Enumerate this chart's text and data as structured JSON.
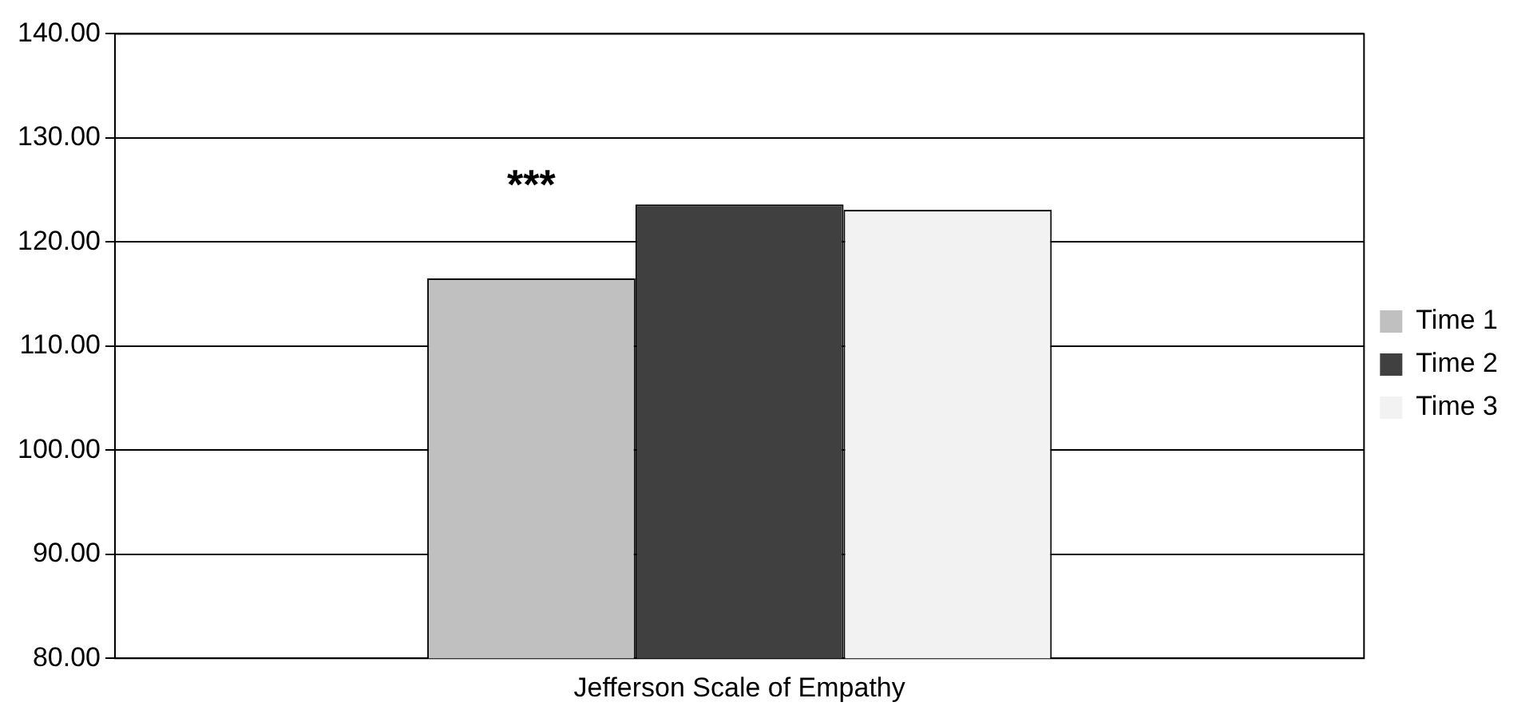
{
  "chart_data": {
    "type": "bar",
    "categories": [
      "Jefferson Scale of Empathy"
    ],
    "series": [
      {
        "name": "Time 1",
        "color": "#c0c0c0",
        "values": [
          116.5
        ]
      },
      {
        "name": "Time 2",
        "color": "#404040",
        "values": [
          123.6
        ]
      },
      {
        "name": "Time 3",
        "color": "#f2f2f2",
        "values": [
          123.1
        ]
      }
    ],
    "ylim": [
      80,
      140
    ],
    "yticks": [
      {
        "value": 80,
        "label": "80.00"
      },
      {
        "value": 90,
        "label": "90.00"
      },
      {
        "value": 100,
        "label": "100.00"
      },
      {
        "value": 110,
        "label": "110.00"
      },
      {
        "value": 120,
        "label": "120.00"
      },
      {
        "value": 130,
        "label": "130.00"
      },
      {
        "value": 140,
        "label": "140.00"
      }
    ],
    "grid": "y",
    "legend": "right",
    "annotations": [
      "***"
    ]
  }
}
